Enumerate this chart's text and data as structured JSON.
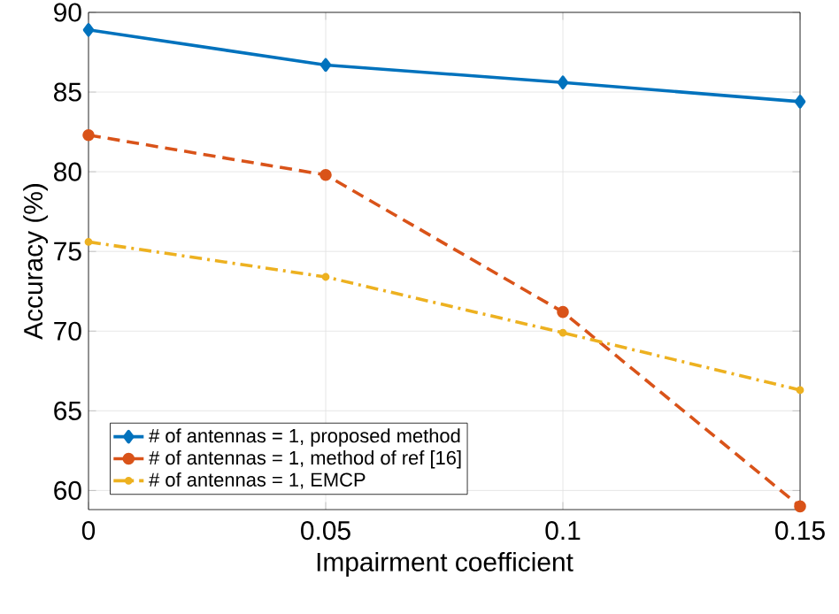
{
  "chart_data": {
    "type": "line",
    "xlabel": "Impairment coefficient",
    "ylabel": "Accuracy (%)",
    "x": [
      0,
      0.05,
      0.1,
      0.15
    ],
    "series": [
      {
        "name": "# of antennas = 1, proposed method",
        "color": "#0072bd",
        "values": [
          88.9,
          86.7,
          85.6,
          84.4
        ],
        "marker": "diamond",
        "line_style": "solid"
      },
      {
        "name": "# of antennas = 1, method of ref [16]",
        "color": "#d95319",
        "values": [
          82.3,
          79.8,
          71.2,
          59.0
        ],
        "marker": "circle",
        "line_style": "dashed"
      },
      {
        "name": "# of antennas = 1, EMCP",
        "color": "#edb120",
        "values": [
          75.6,
          73.4,
          69.9,
          66.3
        ],
        "marker": "circle",
        "line_style": "dashdot"
      }
    ],
    "xlim": [
      0,
      0.15
    ],
    "xticks": [
      0,
      0.05,
      0.1,
      0.15
    ],
    "ylim": [
      58.8,
      90
    ],
    "yticks": [
      60,
      65,
      70,
      75,
      80,
      85,
      90
    ],
    "grid": true,
    "legend": "bottom left"
  }
}
